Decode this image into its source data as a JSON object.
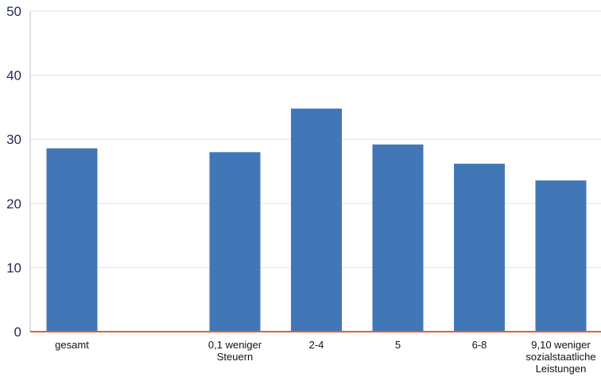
{
  "chart_data": {
    "type": "bar",
    "title": "",
    "xlabel": "",
    "ylabel": "",
    "ylim": [
      0,
      50
    ],
    "yticks": [
      0,
      10,
      20,
      30,
      40,
      50
    ],
    "grid": true,
    "categories": [
      "gesamt",
      "",
      "0,1 weniger Steuern",
      "2-4",
      "5",
      "6-8",
      "9,10 weniger sozialstaatliche Leistungen"
    ],
    "category_lines": [
      [
        "gesamt"
      ],
      [],
      [
        "0,1 weniger",
        "Steuern"
      ],
      [
        "2-4"
      ],
      [
        "5"
      ],
      [
        "6-8"
      ],
      [
        "9,10 weniger",
        "sozialstaatliche",
        "Leistungen"
      ]
    ],
    "values": [
      28.6,
      null,
      28.0,
      34.8,
      29.2,
      26.2,
      23.6
    ],
    "colors": {
      "bar": "#4277b7",
      "grid": "#dde3ea",
      "y_axis": "#bcc3cd",
      "baseline": "#e0622a",
      "tick_text": "#1f2a55",
      "category_text": "#111111"
    }
  }
}
